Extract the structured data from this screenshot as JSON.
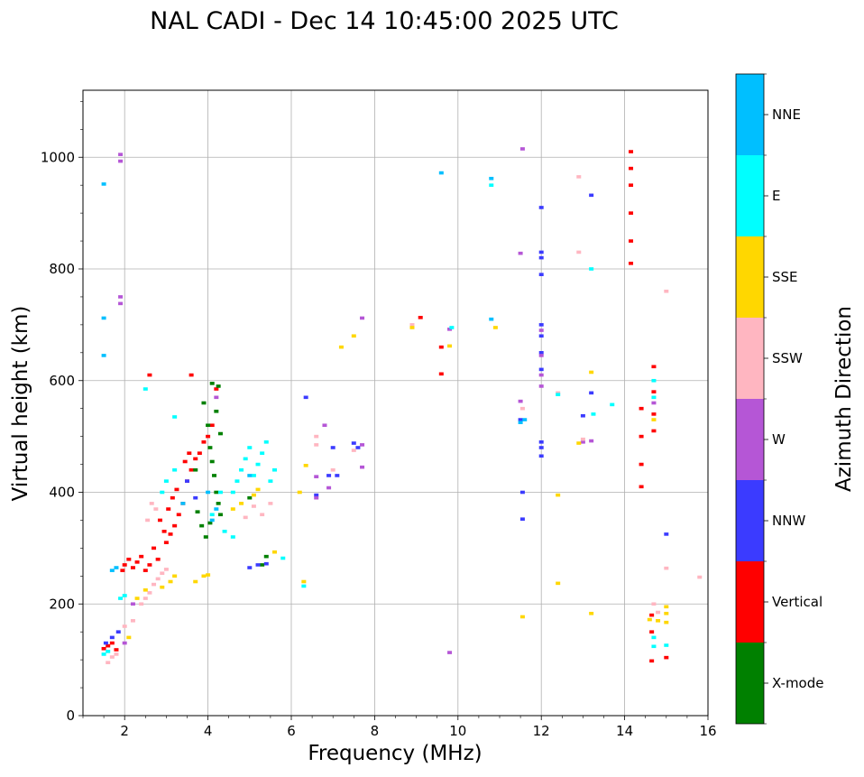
{
  "chart_data": {
    "type": "scatter",
    "title": "NAL CADI - Dec 14 10:45:00 2025 UTC",
    "xlabel": "Frequency (MHz)",
    "ylabel": "Virtual height (km)",
    "xlim": [
      1,
      16
    ],
    "ylim": [
      0,
      1120
    ],
    "xticks": [
      2,
      4,
      6,
      8,
      10,
      12,
      14,
      16
    ],
    "yticks": [
      0,
      200,
      400,
      600,
      800,
      1000
    ],
    "grid": true,
    "colorbar": {
      "label": "Azimuth Direction",
      "categories": [
        "X-mode",
        "Vertical",
        "NNW",
        "W",
        "SSW",
        "SSE",
        "E",
        "NNE"
      ],
      "colors": {
        "X-mode": "#008000",
        "Vertical": "#ff0000",
        "NNW": "#3b3bff",
        "W": "#b556d6",
        "SSW": "#ffb6c1",
        "SSE": "#ffd700",
        "E": "#00ffff",
        "NNE": "#00bfff"
      }
    },
    "series": [
      {
        "name": "Vertical",
        "points": [
          [
            1.5,
            120
          ],
          [
            1.6,
            125
          ],
          [
            1.7,
            130
          ],
          [
            1.8,
            118
          ],
          [
            1.95,
            260
          ],
          [
            2.0,
            270
          ],
          [
            2.1,
            280
          ],
          [
            2.2,
            265
          ],
          [
            2.3,
            275
          ],
          [
            2.4,
            285
          ],
          [
            2.5,
            260
          ],
          [
            2.6,
            270
          ],
          [
            2.7,
            300
          ],
          [
            2.8,
            280
          ],
          [
            3.0,
            310
          ],
          [
            3.1,
            325
          ],
          [
            3.2,
            340
          ],
          [
            3.3,
            360
          ],
          [
            3.4,
            380
          ],
          [
            3.5,
            420
          ],
          [
            3.6,
            440
          ],
          [
            3.7,
            460
          ],
          [
            3.8,
            470
          ],
          [
            3.9,
            490
          ],
          [
            4.0,
            500
          ],
          [
            4.1,
            520
          ],
          [
            2.85,
            350
          ],
          [
            2.95,
            330
          ],
          [
            3.05,
            370
          ],
          [
            3.15,
            390
          ],
          [
            3.25,
            405
          ],
          [
            3.45,
            455
          ],
          [
            3.55,
            470
          ],
          [
            2.6,
            610
          ],
          [
            3.6,
            610
          ],
          [
            4.2,
            585
          ],
          [
            9.6,
            660
          ],
          [
            9.6,
            612
          ],
          [
            9.1,
            713
          ],
          [
            14.15,
            950
          ],
          [
            14.15,
            900
          ],
          [
            14.15,
            850
          ],
          [
            14.15,
            810
          ],
          [
            14.15,
            1010
          ],
          [
            14.15,
            980
          ],
          [
            14.4,
            550
          ],
          [
            14.4,
            500
          ],
          [
            14.4,
            450
          ],
          [
            14.4,
            410
          ],
          [
            14.7,
            625
          ],
          [
            14.7,
            580
          ],
          [
            14.7,
            540
          ],
          [
            14.7,
            510
          ],
          [
            14.65,
            98
          ],
          [
            14.65,
            150
          ],
          [
            14.65,
            180
          ],
          [
            15.0,
            104
          ]
        ]
      },
      {
        "name": "X-mode",
        "points": [
          [
            3.9,
            560
          ],
          [
            4.0,
            520
          ],
          [
            4.05,
            480
          ],
          [
            4.1,
            455
          ],
          [
            4.15,
            430
          ],
          [
            4.2,
            400
          ],
          [
            4.25,
            380
          ],
          [
            4.3,
            360
          ],
          [
            3.85,
            340
          ],
          [
            3.95,
            320
          ],
          [
            4.05,
            345
          ],
          [
            4.2,
            545
          ],
          [
            4.25,
            590
          ],
          [
            4.1,
            595
          ],
          [
            3.7,
            440
          ],
          [
            5.3,
            270
          ],
          [
            5.4,
            285
          ],
          [
            5.0,
            390
          ],
          [
            3.75,
            365
          ],
          [
            4.3,
            505
          ]
        ]
      },
      {
        "name": "NNW",
        "points": [
          [
            1.55,
            130
          ],
          [
            1.7,
            140
          ],
          [
            1.85,
            150
          ],
          [
            5.0,
            265
          ],
          [
            5.2,
            270
          ],
          [
            5.4,
            272
          ],
          [
            6.6,
            395
          ],
          [
            6.9,
            430
          ],
          [
            7.1,
            430
          ],
          [
            6.35,
            570
          ],
          [
            7.0,
            480
          ],
          [
            7.6,
            480
          ],
          [
            7.5,
            488
          ],
          [
            11.55,
            352
          ],
          [
            11.55,
            400
          ],
          [
            11.5,
            530
          ],
          [
            12.0,
            480
          ],
          [
            12.0,
            465
          ],
          [
            12.0,
            490
          ],
          [
            12.0,
            820
          ],
          [
            12.0,
            830
          ],
          [
            12.0,
            700
          ],
          [
            12.0,
            680
          ],
          [
            12.0,
            650
          ],
          [
            12.0,
            620
          ],
          [
            12.0,
            910
          ],
          [
            12.0,
            790
          ],
          [
            13.2,
            932
          ],
          [
            13.0,
            537
          ],
          [
            13.2,
            578
          ],
          [
            15.0,
            325
          ],
          [
            3.7,
            390
          ],
          [
            3.5,
            420
          ]
        ]
      },
      {
        "name": "W",
        "points": [
          [
            1.9,
            1005
          ],
          [
            1.9,
            993
          ],
          [
            1.9,
            750
          ],
          [
            1.9,
            738
          ],
          [
            6.6,
            428
          ],
          [
            6.8,
            520
          ],
          [
            6.9,
            408
          ],
          [
            7.7,
            485
          ],
          [
            7.7,
            445
          ],
          [
            7.7,
            712
          ],
          [
            9.8,
            692
          ],
          [
            9.8,
            113
          ],
          [
            11.5,
            563
          ],
          [
            11.5,
            828
          ],
          [
            11.55,
            1015
          ],
          [
            12.0,
            590
          ],
          [
            12.0,
            610
          ],
          [
            12.0,
            645
          ],
          [
            12.0,
            690
          ],
          [
            13.0,
            490
          ],
          [
            13.2,
            492
          ],
          [
            14.7,
            560
          ],
          [
            2.0,
            130
          ],
          [
            2.2,
            200
          ],
          [
            4.2,
            570
          ],
          [
            6.6,
            390
          ]
        ]
      },
      {
        "name": "SSW",
        "points": [
          [
            1.6,
            95
          ],
          [
            1.7,
            105
          ],
          [
            1.8,
            110
          ],
          [
            2.0,
            160
          ],
          [
            2.2,
            170
          ],
          [
            2.4,
            200
          ],
          [
            2.5,
            210
          ],
          [
            2.6,
            220
          ],
          [
            2.7,
            235
          ],
          [
            2.8,
            245
          ],
          [
            2.9,
            255
          ],
          [
            3.0,
            262
          ],
          [
            2.55,
            350
          ],
          [
            2.65,
            380
          ],
          [
            2.75,
            370
          ],
          [
            5.3,
            360
          ],
          [
            5.5,
            380
          ],
          [
            5.1,
            375
          ],
          [
            4.9,
            355
          ],
          [
            6.6,
            485
          ],
          [
            6.6,
            500
          ],
          [
            7.5,
            475
          ],
          [
            7.0,
            440
          ],
          [
            8.9,
            700
          ],
          [
            11.55,
            550
          ],
          [
            12.4,
            578
          ],
          [
            12.9,
            965
          ],
          [
            12.9,
            830
          ],
          [
            13.0,
            495
          ],
          [
            15.0,
            760
          ],
          [
            15.0,
            264
          ],
          [
            15.8,
            248
          ],
          [
            14.7,
            200
          ],
          [
            14.8,
            185
          ]
        ]
      },
      {
        "name": "SSE",
        "points": [
          [
            2.1,
            140
          ],
          [
            2.3,
            210
          ],
          [
            2.5,
            225
          ],
          [
            2.9,
            230
          ],
          [
            3.1,
            240
          ],
          [
            3.2,
            250
          ],
          [
            3.7,
            240
          ],
          [
            3.9,
            250
          ],
          [
            4.0,
            252
          ],
          [
            4.6,
            370
          ],
          [
            4.8,
            380
          ],
          [
            5.1,
            395
          ],
          [
            5.2,
            405
          ],
          [
            5.6,
            293
          ],
          [
            6.3,
            240
          ],
          [
            6.35,
            448
          ],
          [
            6.2,
            400
          ],
          [
            7.5,
            680
          ],
          [
            7.2,
            660
          ],
          [
            8.9,
            695
          ],
          [
            9.8,
            662
          ],
          [
            10.9,
            695
          ],
          [
            11.55,
            177
          ],
          [
            12.4,
            395
          ],
          [
            12.4,
            237
          ],
          [
            12.9,
            488
          ],
          [
            13.2,
            183
          ],
          [
            13.2,
            615
          ],
          [
            14.6,
            172
          ],
          [
            14.8,
            170
          ],
          [
            15.0,
            183
          ],
          [
            15.0,
            195
          ],
          [
            14.7,
            530
          ],
          [
            15.0,
            167
          ]
        ]
      },
      {
        "name": "E",
        "points": [
          [
            1.5,
            110
          ],
          [
            1.6,
            115
          ],
          [
            1.9,
            210
          ],
          [
            2.0,
            215
          ],
          [
            2.9,
            400
          ],
          [
            3.0,
            420
          ],
          [
            3.2,
            440
          ],
          [
            4.6,
            400
          ],
          [
            4.7,
            420
          ],
          [
            4.8,
            440
          ],
          [
            4.9,
            460
          ],
          [
            5.0,
            480
          ],
          [
            5.1,
            430
          ],
          [
            5.2,
            450
          ],
          [
            5.3,
            470
          ],
          [
            5.4,
            490
          ],
          [
            5.5,
            420
          ],
          [
            5.6,
            440
          ],
          [
            4.4,
            330
          ],
          [
            4.6,
            320
          ],
          [
            4.3,
            400
          ],
          [
            4.1,
            360
          ],
          [
            5.8,
            282
          ],
          [
            6.3,
            232
          ],
          [
            9.85,
            695
          ],
          [
            10.8,
            950
          ],
          [
            12.4,
            575
          ],
          [
            13.2,
            800
          ],
          [
            13.25,
            540
          ],
          [
            13.7,
            557
          ],
          [
            14.7,
            600
          ],
          [
            14.7,
            570
          ],
          [
            14.7,
            140
          ],
          [
            14.7,
            124
          ],
          [
            15.0,
            126
          ],
          [
            2.5,
            585
          ],
          [
            3.2,
            535
          ]
        ]
      },
      {
        "name": "NNE",
        "points": [
          [
            1.5,
            952
          ],
          [
            1.5,
            712
          ],
          [
            1.5,
            645
          ],
          [
            9.6,
            972
          ],
          [
            10.8,
            962
          ],
          [
            10.8,
            710
          ],
          [
            1.8,
            265
          ],
          [
            1.7,
            260
          ],
          [
            3.4,
            380
          ],
          [
            4.0,
            400
          ],
          [
            4.1,
            350
          ],
          [
            4.2,
            370
          ],
          [
            5.0,
            430
          ],
          [
            11.5,
            525
          ],
          [
            11.6,
            530
          ]
        ]
      }
    ]
  }
}
